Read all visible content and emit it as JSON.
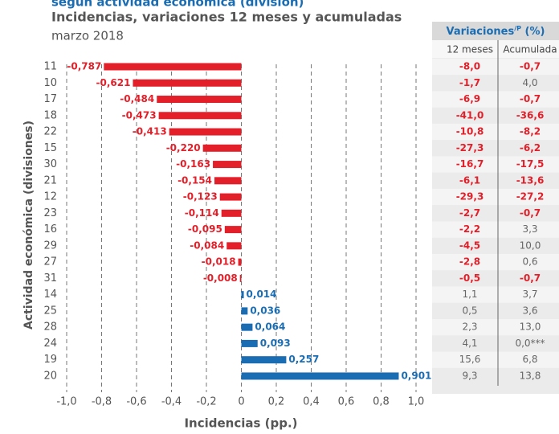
{
  "chart_data": {
    "type": "bar",
    "orientation": "horizontal",
    "title": "según actividad económica (división)",
    "subtitle": "Incidencias, variaciones 12 meses y acumuladas",
    "date": "marzo 2018",
    "y_label": "Actividad económica (divisiones)",
    "x_label": "Incidencias (pp.)",
    "categories": [
      "11",
      "10",
      "17",
      "18",
      "22",
      "15",
      "30",
      "21",
      "12",
      "23",
      "16",
      "29",
      "27",
      "31",
      "14",
      "25",
      "28",
      "24",
      "19",
      "20"
    ],
    "values": [
      -0.787,
      -0.621,
      -0.484,
      -0.473,
      -0.413,
      -0.22,
      -0.163,
      -0.154,
      -0.123,
      -0.114,
      -0.095,
      -0.084,
      -0.018,
      -0.008,
      0.014,
      0.036,
      0.064,
      0.093,
      0.257,
      0.901
    ],
    "value_labels": [
      "-0,787",
      "-0,621",
      "-0,484",
      "-0,473",
      "-0,413",
      "-0,220",
      "-0,163",
      "-0,154",
      "-0,123",
      "-0,114",
      "-0,095",
      "-0,084",
      "-0,018",
      "-0,008",
      "0,014",
      "0,036",
      "0,064",
      "0,093",
      "0,257",
      "0,901"
    ],
    "negative_color": "#e3202a",
    "positive_color": "#1b6db3",
    "xlim": [
      -1.0,
      1.0
    ],
    "xticks": [
      {
        "value": -1.0,
        "label": "-1,0"
      },
      {
        "value": -0.8,
        "label": "-0,8"
      },
      {
        "value": -0.6,
        "label": "-0,6"
      },
      {
        "value": -0.4,
        "label": "-0,4"
      },
      {
        "value": -0.2,
        "label": "-0,2"
      },
      0,
      {
        "value": 0.2,
        "label": "0,2"
      },
      {
        "value": 0.4,
        "label": "0,4"
      },
      {
        "value": 0.6,
        "label": "0,6"
      },
      {
        "value": 0.8,
        "label": "0,8"
      },
      {
        "value": 1.0,
        "label": "1,0"
      }
    ],
    "grid": true
  },
  "table": {
    "title": "Variaciones",
    "title_sup": "/P",
    "title_suffix": " (%)",
    "columns": [
      "12 meses",
      "Acumulada"
    ],
    "rows": [
      [
        "-8,0",
        "-0,7"
      ],
      [
        "-1,7",
        "4,0"
      ],
      [
        "-6,9",
        "-0,7"
      ],
      [
        "-41,0",
        "-36,6"
      ],
      [
        "-10,8",
        "-8,2"
      ],
      [
        "-27,3",
        "-6,2"
      ],
      [
        "-16,7",
        "-17,5"
      ],
      [
        "-6,1",
        "-13,6"
      ],
      [
        "-29,3",
        "-27,2"
      ],
      [
        "-2,7",
        "-0,7"
      ],
      [
        "-2,2",
        "3,3"
      ],
      [
        "-4,5",
        "10,0"
      ],
      [
        "-2,8",
        "0,6"
      ],
      [
        "-0,5",
        "-0,7"
      ],
      [
        "1,1",
        "3,7"
      ],
      [
        "0,5",
        "3,6"
      ],
      [
        "2,3",
        "13,0"
      ],
      [
        "4,1",
        "0,0***"
      ],
      [
        "15,6",
        "6,8"
      ],
      [
        "9,3",
        "13,8"
      ]
    ]
  }
}
